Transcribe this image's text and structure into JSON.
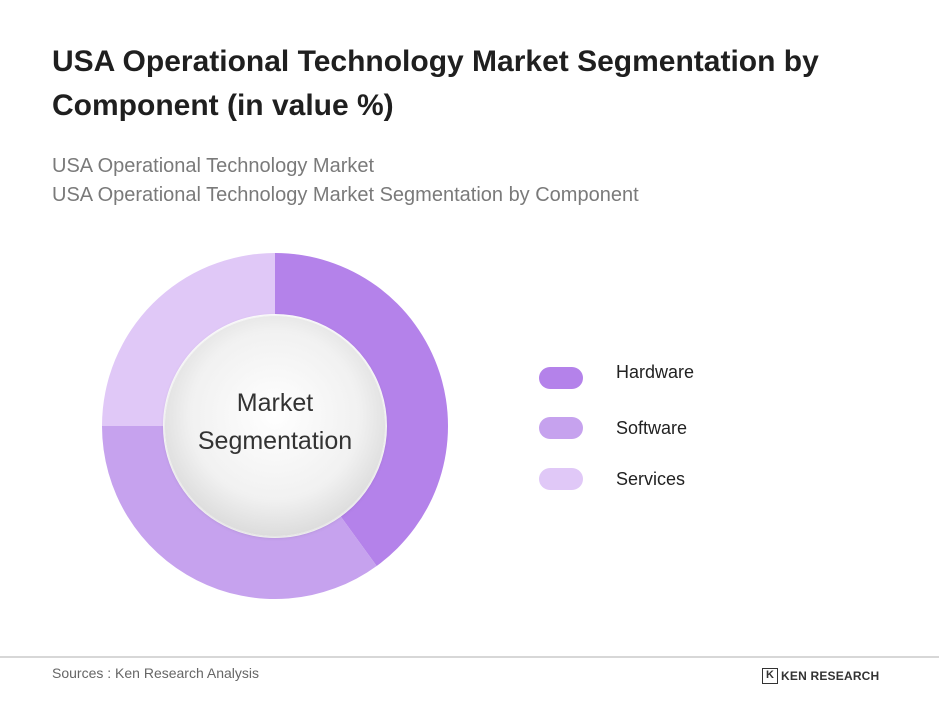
{
  "chart_data": {
    "type": "pie",
    "title": "USA Operational Technology Market Segmentation by Component (in value %)",
    "subtitle_lines": [
      "USA Operational Technology Market",
      "USA Operational Technology Market Segmentation by Component"
    ],
    "center_label_lines": [
      "Market",
      "Segmentation"
    ],
    "categories": [
      "Hardware",
      "Software",
      "Services"
    ],
    "values": [
      40,
      35,
      25
    ],
    "colors": [
      "#b482ea",
      "#c6a2ee",
      "#e0c8f7"
    ],
    "legend_position": "right"
  },
  "footer": {
    "sources": "Sources : Ken Research Analysis",
    "brand_mark": "K",
    "brand": "KEN RESEARCH"
  }
}
